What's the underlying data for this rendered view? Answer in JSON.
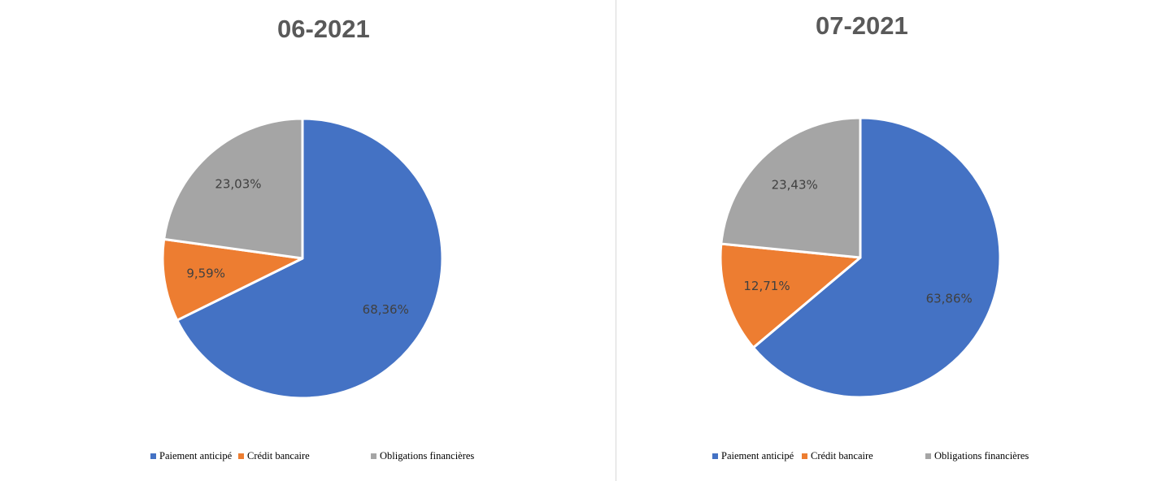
{
  "legend": [
    {
      "label": "Paiement anticipé",
      "color": "#4472C4"
    },
    {
      "label": "Crédit bancaire",
      "color": "#ED7D31"
    },
    {
      "label": "Obligations financières",
      "color": "#A5A5A5"
    }
  ],
  "label_color": "#404040",
  "chart_data": [
    {
      "type": "pie",
      "title": "06-2021",
      "categories": [
        "Paiement anticipé",
        "Crédit bancaire",
        "Obligations financières"
      ],
      "values": [
        68.36,
        9.59,
        23.03
      ],
      "data_labels": [
        "68,36%",
        "9,59%",
        "23,03%"
      ],
      "colors": [
        "#4472C4",
        "#ED7D31",
        "#A5A5A5"
      ],
      "legend_position": "bottom"
    },
    {
      "type": "pie",
      "title": "07-2021",
      "categories": [
        "Paiement anticipé",
        "Crédit bancaire",
        "Obligations financières"
      ],
      "values": [
        63.86,
        12.71,
        23.43
      ],
      "data_labels": [
        "63,86%",
        "12,71%",
        "23,43%"
      ],
      "colors": [
        "#4472C4",
        "#ED7D31",
        "#A5A5A5"
      ],
      "legend_position": "bottom"
    }
  ]
}
